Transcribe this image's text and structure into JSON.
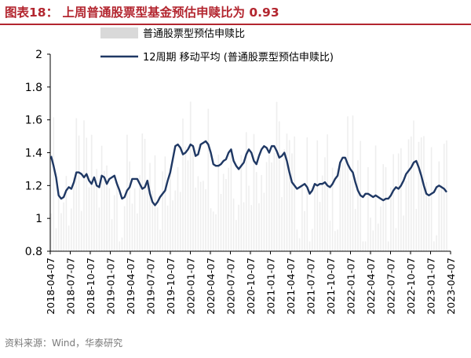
{
  "header": {
    "title": "图表18： 上周普通股票型基金预估申赎比为 0.93"
  },
  "footer": {
    "source": "资料来源：Wind，华泰研究"
  },
  "colors": {
    "title": "#b3262f",
    "weekly_bars": "#d9d9d9",
    "ma_line": "#1f3864"
  },
  "chart_data": {
    "type": "bar+line",
    "ylim": [
      0.8,
      2.0
    ],
    "yticks": [
      0.8,
      1.0,
      1.2,
      1.4,
      1.6,
      1.8,
      2.0
    ],
    "ytick_labels": [
      "0.8",
      "1",
      "1.2",
      "1.4",
      "1.6",
      "1.8",
      "2"
    ],
    "xticks": [
      "2018-04-07",
      "2018-07-07",
      "2018-10-07",
      "2019-01-07",
      "2019-04-07",
      "2019-07-07",
      "2019-10-07",
      "2020-01-07",
      "2020-04-07",
      "2020-07-07",
      "2020-10-07",
      "2021-01-07",
      "2021-04-07",
      "2021-07-07",
      "2021-10-07",
      "2022-01-07",
      "2022-04-07",
      "2022-07-07",
      "2022-10-07",
      "2023-01-07",
      "2023-04-07"
    ],
    "legend": {
      "position": "top",
      "entries": [
        "普通股票型预估申赎比",
        "12周期 移动平均 (普通股票型预估申赎比)"
      ]
    },
    "series": [
      {
        "name": "12周期 移动平均 (普通股票型预估申赎比)",
        "type": "line",
        "values": [
          1.38,
          1.32,
          1.25,
          1.14,
          1.12,
          1.13,
          1.17,
          1.19,
          1.18,
          1.22,
          1.28,
          1.28,
          1.27,
          1.25,
          1.27,
          1.23,
          1.21,
          1.25,
          1.2,
          1.19,
          1.26,
          1.25,
          1.21,
          1.24,
          1.25,
          1.26,
          1.21,
          1.17,
          1.12,
          1.13,
          1.17,
          1.19,
          1.24,
          1.24,
          1.24,
          1.21,
          1.18,
          1.19,
          1.23,
          1.15,
          1.1,
          1.08,
          1.1,
          1.13,
          1.15,
          1.17,
          1.23,
          1.28,
          1.36,
          1.44,
          1.45,
          1.43,
          1.39,
          1.4,
          1.42,
          1.45,
          1.44,
          1.38,
          1.39,
          1.45,
          1.46,
          1.47,
          1.45,
          1.4,
          1.33,
          1.32,
          1.32,
          1.33,
          1.35,
          1.36,
          1.4,
          1.42,
          1.35,
          1.32,
          1.3,
          1.32,
          1.34,
          1.39,
          1.42,
          1.4,
          1.35,
          1.33,
          1.38,
          1.42,
          1.44,
          1.43,
          1.4,
          1.44,
          1.44,
          1.41,
          1.37,
          1.38,
          1.4,
          1.35,
          1.28,
          1.22,
          1.2,
          1.18,
          1.19,
          1.2,
          1.21,
          1.19,
          1.15,
          1.17,
          1.21,
          1.2,
          1.21,
          1.21,
          1.22,
          1.2,
          1.19,
          1.21,
          1.24,
          1.26,
          1.34,
          1.37,
          1.37,
          1.33,
          1.3,
          1.28,
          1.22,
          1.17,
          1.14,
          1.13,
          1.15,
          1.15,
          1.14,
          1.13,
          1.14,
          1.13,
          1.12,
          1.11,
          1.12,
          1.12,
          1.14,
          1.17,
          1.19,
          1.18,
          1.2,
          1.23,
          1.27,
          1.29,
          1.31,
          1.34,
          1.35,
          1.31,
          1.26,
          1.2,
          1.15,
          1.14,
          1.15,
          1.16,
          1.19,
          1.2,
          1.19,
          1.18,
          1.16
        ]
      }
    ]
  }
}
